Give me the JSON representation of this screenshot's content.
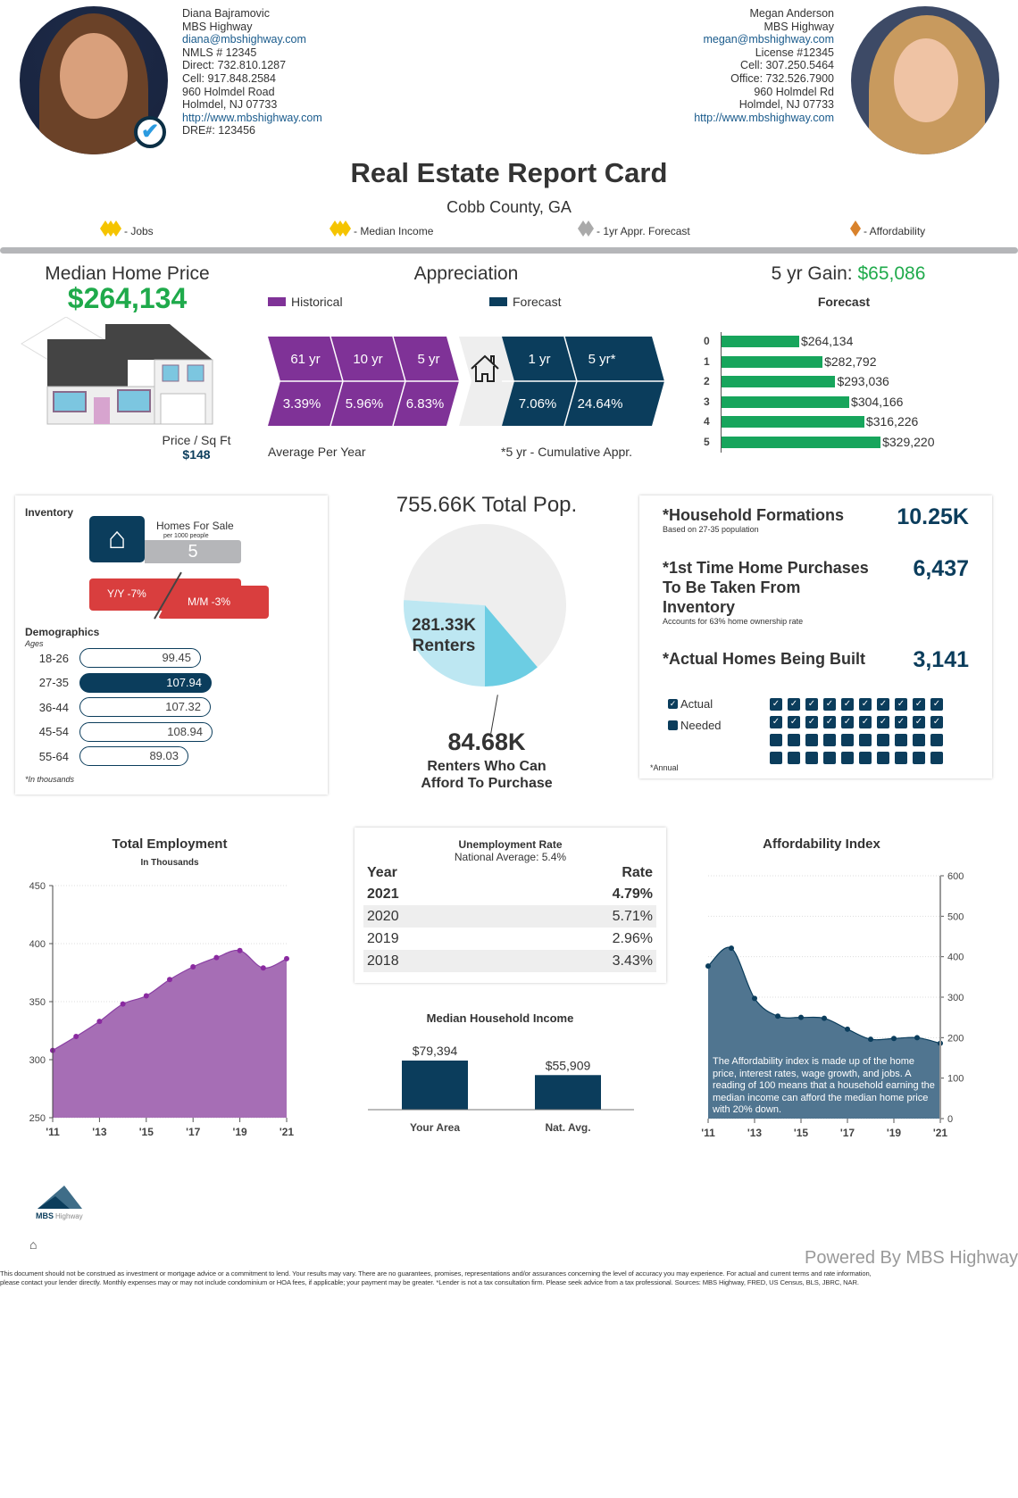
{
  "agent_left": {
    "name": "Diana Bajramovic",
    "company": "MBS Highway",
    "email": "diana@mbshighway.com",
    "nmls": "NMLS # 12345",
    "direct": "Direct: 732.810.1287",
    "cell": "Cell: 917.848.2584",
    "address1": "960 Holmdel Road",
    "address2": "Holmdel,  NJ  07733",
    "website": "http://www.mbshighway.com",
    "dre": "DRE#: 123456"
  },
  "agent_right": {
    "name": "Megan Anderson",
    "company": "MBS Highway",
    "email": "megan@mbshighway.com",
    "license": "License #12345",
    "cell": "Cell: 307.250.5464",
    "office": "Office: 732.526.7900",
    "address1": "960 Holmdel Rd",
    "address2": "Holmdel,  NJ  07733",
    "website": "http://www.mbshighway.com"
  },
  "title": "Real Estate Report Card",
  "subtitle": "Cobb County, GA",
  "ratings": [
    {
      "label": "- Jobs",
      "count": 3,
      "color": "#f5c400"
    },
    {
      "label": "- Median Income",
      "count": 3,
      "color": "#f5c400"
    },
    {
      "label": "- 1yr Appr. Forecast",
      "count": 2,
      "color": "#aaaaaa"
    },
    {
      "label": "- Affordability",
      "count": 1,
      "color": "#d9822b"
    }
  ],
  "median": {
    "heading": "Median Home Price",
    "price": "$264,134",
    "psf_label": "Price / Sq Ft",
    "psf": "$148"
  },
  "appreciation": {
    "heading": "Appreciation",
    "legend_hist": "Historical",
    "legend_fore": "Forecast",
    "hist": [
      {
        "period": "61 yr",
        "value": "3.39%"
      },
      {
        "period": "10 yr",
        "value": "5.96%"
      },
      {
        "period": "5 yr",
        "value": "6.83%"
      }
    ],
    "fore": [
      {
        "period": "1 yr",
        "value": "7.06%"
      },
      {
        "period": "5 yr*",
        "value": "24.64%"
      }
    ],
    "note_left": "Average Per Year",
    "note_right": "*5 yr - Cumulative Appr.",
    "colors": {
      "hist": "#7f3297",
      "fore": "#0b3d5c"
    }
  },
  "gain": {
    "label": "5 yr Gain:",
    "value": "$65,086",
    "chart_title": "Forecast"
  },
  "chart_data": [
    {
      "type": "bar",
      "title": "Forecast",
      "categories": [
        "0",
        "1",
        "2",
        "3",
        "4",
        "5"
      ],
      "values": [
        264134,
        282792,
        293036,
        304166,
        316226,
        329220
      ],
      "labels": [
        "$264,134",
        "$282,792",
        "$293,036",
        "$304,166",
        "$316,226",
        "$329,220"
      ],
      "orientation": "horizontal"
    },
    {
      "type": "pie",
      "title": "755.66K Total Pop.",
      "slices": [
        {
          "name": "Renters",
          "value": 281.33,
          "label": "281.33K",
          "sublabel": "Renters"
        },
        {
          "name": "Renters Who Can Afford To Purchase",
          "value": 84.68,
          "label": "84.68K",
          "sublabel1": "Renters Who Can",
          "sublabel2": "Afford To Purchase"
        }
      ],
      "total": 755.66
    },
    {
      "type": "area",
      "title": "Total Employment",
      "subtitle": "In Thousands",
      "x": [
        2011,
        2012,
        2013,
        2014,
        2015,
        2016,
        2017,
        2018,
        2019,
        2020,
        2021
      ],
      "values": [
        308,
        320,
        333,
        348,
        355,
        369,
        380,
        388,
        394,
        379,
        387
      ],
      "ylim": [
        250,
        450
      ],
      "yticks": [
        "450",
        "400",
        "350",
        "300",
        "250"
      ],
      "xticks": [
        "'11",
        "'13",
        "'15",
        "'17",
        "'19",
        "'21"
      ],
      "color": "#a66eb5"
    },
    {
      "type": "bar",
      "title": "Median Household Income",
      "categories": [
        "Your Area",
        "Nat. Avg."
      ],
      "values": [
        79394,
        55909
      ],
      "labels": [
        "$79,394",
        "$55,909"
      ]
    },
    {
      "type": "area",
      "title": "Affordability Index",
      "x": [
        2011,
        2012,
        2013,
        2014,
        2015,
        2016,
        2017,
        2018,
        2019,
        2020,
        2021
      ],
      "values": [
        377,
        421,
        297,
        253,
        250,
        248,
        221,
        196,
        198,
        200,
        186
      ],
      "ylim": [
        0,
        600
      ],
      "yticks": [
        "600",
        "500",
        "400",
        "300",
        "200",
        "100",
        "0"
      ],
      "xticks": [
        "'11",
        "'13",
        "'15",
        "'17",
        "'19",
        "'21"
      ],
      "note": "The Affordability index is made up of the home price, interest rates, wage growth, and jobs. A reading of 100 means that a household earning the median income can afford the median home price with 20% down.",
      "color": "#507590"
    }
  ],
  "inventory": {
    "heading": "Inventory",
    "homes_label": "Homes For Sale",
    "per": "per 1000 people",
    "value": "5",
    "yy": "Y/Y  -7%",
    "mm": "M/M  -3%",
    "demo_heading": "Demographics",
    "ages_label": "Ages",
    "rows": [
      {
        "age": "18-26",
        "value": "99.45"
      },
      {
        "age": "27-35",
        "value": "107.94"
      },
      {
        "age": "36-44",
        "value": "107.32"
      },
      {
        "age": "45-54",
        "value": "108.94"
      },
      {
        "age": "55-64",
        "value": "89.03"
      }
    ],
    "footnote": "*In thousands"
  },
  "stats": {
    "hh_label": "*Household Formations",
    "hh_sub": "Based on 27-35 population",
    "hh_value": "10.25K",
    "ft_label1": "*1st Time Home Purchases",
    "ft_label2": "To Be Taken From",
    "ft_label3": "Inventory",
    "ft_sub": "Accounts for 63% home ownership rate",
    "ft_value": "6,437",
    "built_label": "*Actual Homes Being Built",
    "built_value": "3,141",
    "legend_actual": "Actual",
    "legend_needed": "Needed",
    "waffle_actual": 20,
    "waffle_total": 40,
    "footnote": "*Annual"
  },
  "unemployment": {
    "title": "Unemployment Rate",
    "subtitle": "National Average: 5.4%",
    "col_year": "Year",
    "col_rate": "Rate",
    "rows": [
      {
        "year": "2021",
        "rate": "4.79%"
      },
      {
        "year": "2020",
        "rate": "5.71%"
      },
      {
        "year": "2019",
        "rate": "2.96%"
      },
      {
        "year": "2018",
        "rate": "3.43%"
      }
    ]
  },
  "footer": {
    "logo_text": "MBS Highway",
    "powered": "Powered By MBS Highway",
    "disclaimer1": "This document should not be construed as investment or mortgage advice or a commitment to lend. Your results may vary. There are no guarantees, promises, representations and/or assurances concerning the level of accuracy you may experience. For actual and current terms and rate information,",
    "disclaimer2": "please contact your lender directly. Monthly expenses may or may not include condominium or HOA fees, if applicable; your payment may be greater. *Lender is not a tax consultation firm. Please seek advice from a tax professional. Sources: MBS Highway, FRED, US Census, BLS, JBRC, NAR."
  }
}
